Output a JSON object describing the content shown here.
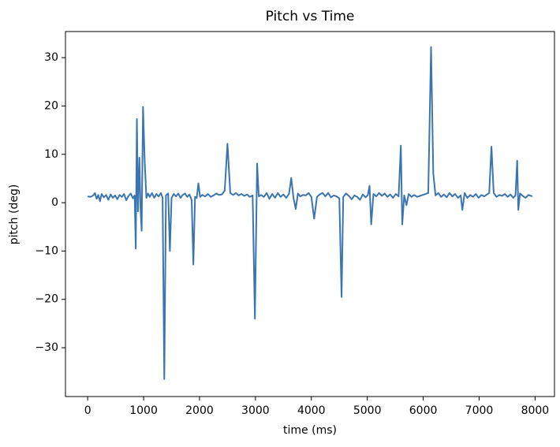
{
  "chart_data": {
    "type": "line",
    "title": "Pitch vs Time",
    "x_label": "time (ms)",
    "y_label": "pitch (deg)",
    "color": "#3a75b0",
    "x": [
      0,
      50,
      100,
      130,
      160,
      190,
      220,
      250,
      290,
      330,
      370,
      410,
      450,
      490,
      530,
      570,
      610,
      650,
      690,
      730,
      770,
      810,
      840,
      860,
      880,
      900,
      925,
      945,
      965,
      990,
      1020,
      1050,
      1080,
      1110,
      1150,
      1190,
      1230,
      1270,
      1310,
      1340,
      1370,
      1400,
      1440,
      1470,
      1500,
      1540,
      1580,
      1620,
      1660,
      1700,
      1740,
      1780,
      1820,
      1860,
      1890,
      1920,
      1950,
      1980,
      2010,
      2050,
      2100,
      2150,
      2200,
      2250,
      2300,
      2350,
      2400,
      2450,
      2500,
      2550,
      2600,
      2650,
      2700,
      2750,
      2800,
      2850,
      2900,
      2950,
      2990,
      3030,
      3060,
      3100,
      3150,
      3200,
      3250,
      3300,
      3350,
      3400,
      3450,
      3500,
      3550,
      3600,
      3640,
      3680,
      3720,
      3760,
      3800,
      3850,
      3900,
      3950,
      4000,
      4050,
      4100,
      4150,
      4200,
      4250,
      4300,
      4350,
      4400,
      4450,
      4500,
      4540,
      4570,
      4620,
      4670,
      4720,
      4770,
      4820,
      4870,
      4920,
      4970,
      5010,
      5040,
      5070,
      5110,
      5160,
      5210,
      5260,
      5310,
      5360,
      5410,
      5460,
      5510,
      5560,
      5600,
      5625,
      5660,
      5700,
      5740,
      5790,
      5840,
      5890,
      5940,
      5990,
      6040,
      6090,
      6140,
      6180,
      6220,
      6270,
      6320,
      6370,
      6420,
      6470,
      6520,
      6570,
      6620,
      6670,
      6700,
      6740,
      6790,
      6840,
      6890,
      6940,
      6990,
      7040,
      7090,
      7140,
      7180,
      7220,
      7260,
      7310,
      7360,
      7410,
      7460,
      7510,
      7560,
      7610,
      7650,
      7680,
      7700,
      7730,
      7780,
      7830,
      7880,
      7950
    ],
    "values": [
      1.3,
      1.2,
      1.5,
      2.0,
      0.8,
      1.6,
      0.3,
      1.8,
      1.1,
      1.6,
      0.6,
      1.7,
      1.0,
      1.5,
      0.7,
      1.6,
      1.2,
      1.8,
      0.5,
      1.4,
      1.9,
      0.9,
      1.5,
      -9.5,
      17.3,
      -1.8,
      9.3,
      -1.2,
      -5.8,
      19.8,
      8.5,
      1.0,
      1.9,
      1.2,
      2.0,
      1.0,
      1.8,
      1.3,
      2.0,
      1.0,
      -36.5,
      1.5,
      1.9,
      -10.0,
      1.0,
      1.8,
      1.3,
      1.9,
      1.0,
      1.6,
      1.9,
      1.2,
      1.7,
      0.5,
      -12.8,
      1.2,
      1.0,
      4.0,
      1.2,
      1.6,
      1.3,
      1.8,
      1.2,
      1.5,
      1.9,
      1.6,
      1.7,
      2.5,
      12.2,
      2.0,
      1.6,
      2.0,
      1.5,
      1.8,
      1.4,
      1.7,
      1.2,
      1.5,
      -24.0,
      8.1,
      1.3,
      1.6,
      1.2,
      2.0,
      0.8,
      1.8,
      1.0,
      2.0,
      1.2,
      1.7,
      1.0,
      1.8,
      5.1,
      1.0,
      -1.3,
      1.9,
      1.3,
      1.6,
      1.5,
      2.0,
      1.2,
      -3.3,
      1.2,
      1.7,
      2.0,
      1.3,
      2.0,
      1.1,
      1.5,
      1.3,
      0.9,
      -19.5,
      1.2,
      1.9,
      1.4,
      0.7,
      1.5,
      1.2,
      0.6,
      1.7,
      1.1,
      1.6,
      3.5,
      -4.5,
      1.8,
      1.3,
      2.0,
      1.4,
      1.9,
      1.2,
      1.7,
      1.0,
      1.8,
      1.3,
      11.8,
      -4.5,
      1.5,
      -0.5,
      1.8,
      1.2,
      1.6,
      1.2,
      1.4,
      1.6,
      1.8,
      2.0,
      32.2,
      6.0,
      1.5,
      2.0,
      1.2,
      1.7,
      1.1,
      2.0,
      1.3,
      1.8,
      1.0,
      1.5,
      -1.5,
      2.0,
      1.0,
      1.6,
      1.2,
      1.8,
      1.0,
      1.6,
      1.3,
      1.7,
      2.0,
      11.6,
      2.0,
      1.2,
      1.6,
      1.4,
      1.8,
      1.2,
      1.7,
      1.0,
      1.5,
      8.7,
      -1.5,
      1.9,
      1.4,
      1.0,
      1.6,
      1.3
    ],
    "xlim": [
      -397,
      8347
    ],
    "ylim": [
      -40.1,
      35.4
    ],
    "xticks": [
      0,
      1000,
      2000,
      3000,
      4000,
      5000,
      6000,
      7000,
      8000
    ],
    "yticks": [
      {
        "value": -30,
        "label": "−30"
      },
      {
        "value": -20,
        "label": "−20"
      },
      {
        "value": -10,
        "label": "−10"
      },
      0,
      10,
      20,
      30
    ]
  }
}
